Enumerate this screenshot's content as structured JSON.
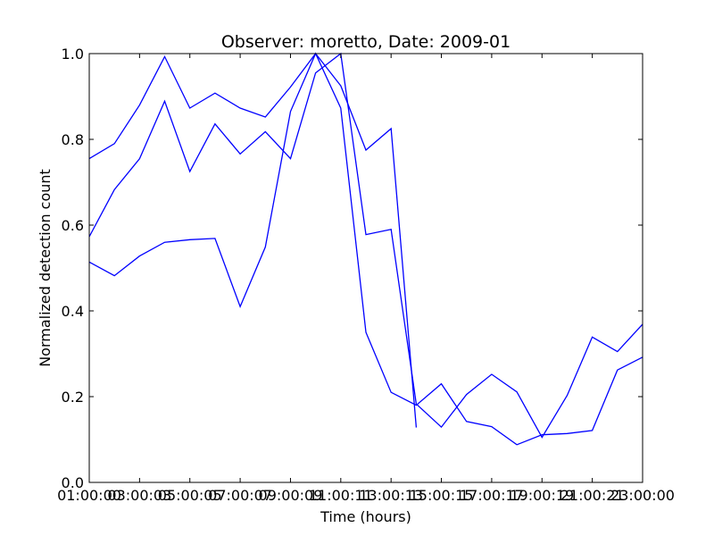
{
  "chart_data": {
    "type": "line",
    "title": "Observer: moretto, Date: 2009-01",
    "xlabel": "Time (hours)",
    "ylabel": "Normalized detection count",
    "xlim": [
      1,
      23
    ],
    "ylim": [
      0.0,
      1.0
    ],
    "xticks": [
      1,
      3,
      5,
      7,
      9,
      11,
      13,
      15,
      17,
      19,
      21,
      23
    ],
    "xtick_labels": [
      "01:00:00",
      "03:00:03",
      "05:00:05",
      "07:00:07",
      "09:00:09",
      "11:00:11",
      "13:00:13",
      "15:00:15",
      "17:00:17",
      "19:00:19",
      "21:00:21",
      "23:00:00"
    ],
    "yticks": [
      0.0,
      0.2,
      0.4,
      0.6,
      0.8,
      1.0
    ],
    "ytick_labels": [
      "0.0",
      "0.2",
      "0.4",
      "0.6",
      "0.8",
      "1.0"
    ],
    "grid": false,
    "line_color": "#0000ff",
    "series": [
      {
        "x": [
          1,
          2,
          3,
          4,
          5,
          6,
          7,
          8,
          9,
          10,
          11,
          12,
          13,
          14
        ],
        "y": [
          0.755,
          0.79,
          0.88,
          0.993,
          0.873,
          0.908,
          0.873,
          0.852,
          0.922,
          1.0,
          0.925,
          0.775,
          0.825,
          0.128
        ]
      },
      {
        "x": [
          1,
          2,
          3,
          4,
          5,
          6,
          7,
          8,
          9,
          10,
          11,
          12,
          13,
          14,
          15,
          16,
          17,
          18,
          19,
          20,
          21,
          22,
          23
        ],
        "y": [
          0.573,
          0.683,
          0.755,
          0.889,
          0.725,
          0.836,
          0.766,
          0.818,
          0.755,
          0.955,
          1.0,
          0.578,
          0.59,
          0.183,
          0.129,
          0.205,
          0.252,
          0.211,
          0.105,
          0.203,
          0.339,
          0.305,
          0.369
        ]
      },
      {
        "x": [
          1,
          2,
          3,
          4,
          5,
          6,
          7,
          8,
          9,
          10,
          11,
          12,
          13,
          14,
          15,
          16,
          17,
          18,
          19,
          20,
          21,
          22,
          23
        ],
        "y": [
          0.514,
          0.482,
          0.528,
          0.56,
          0.566,
          0.569,
          0.41,
          0.549,
          0.865,
          1.0,
          0.873,
          0.35,
          0.21,
          0.18,
          0.23,
          0.142,
          0.13,
          0.088,
          0.111,
          0.114,
          0.121,
          0.262,
          0.292
        ]
      }
    ]
  }
}
